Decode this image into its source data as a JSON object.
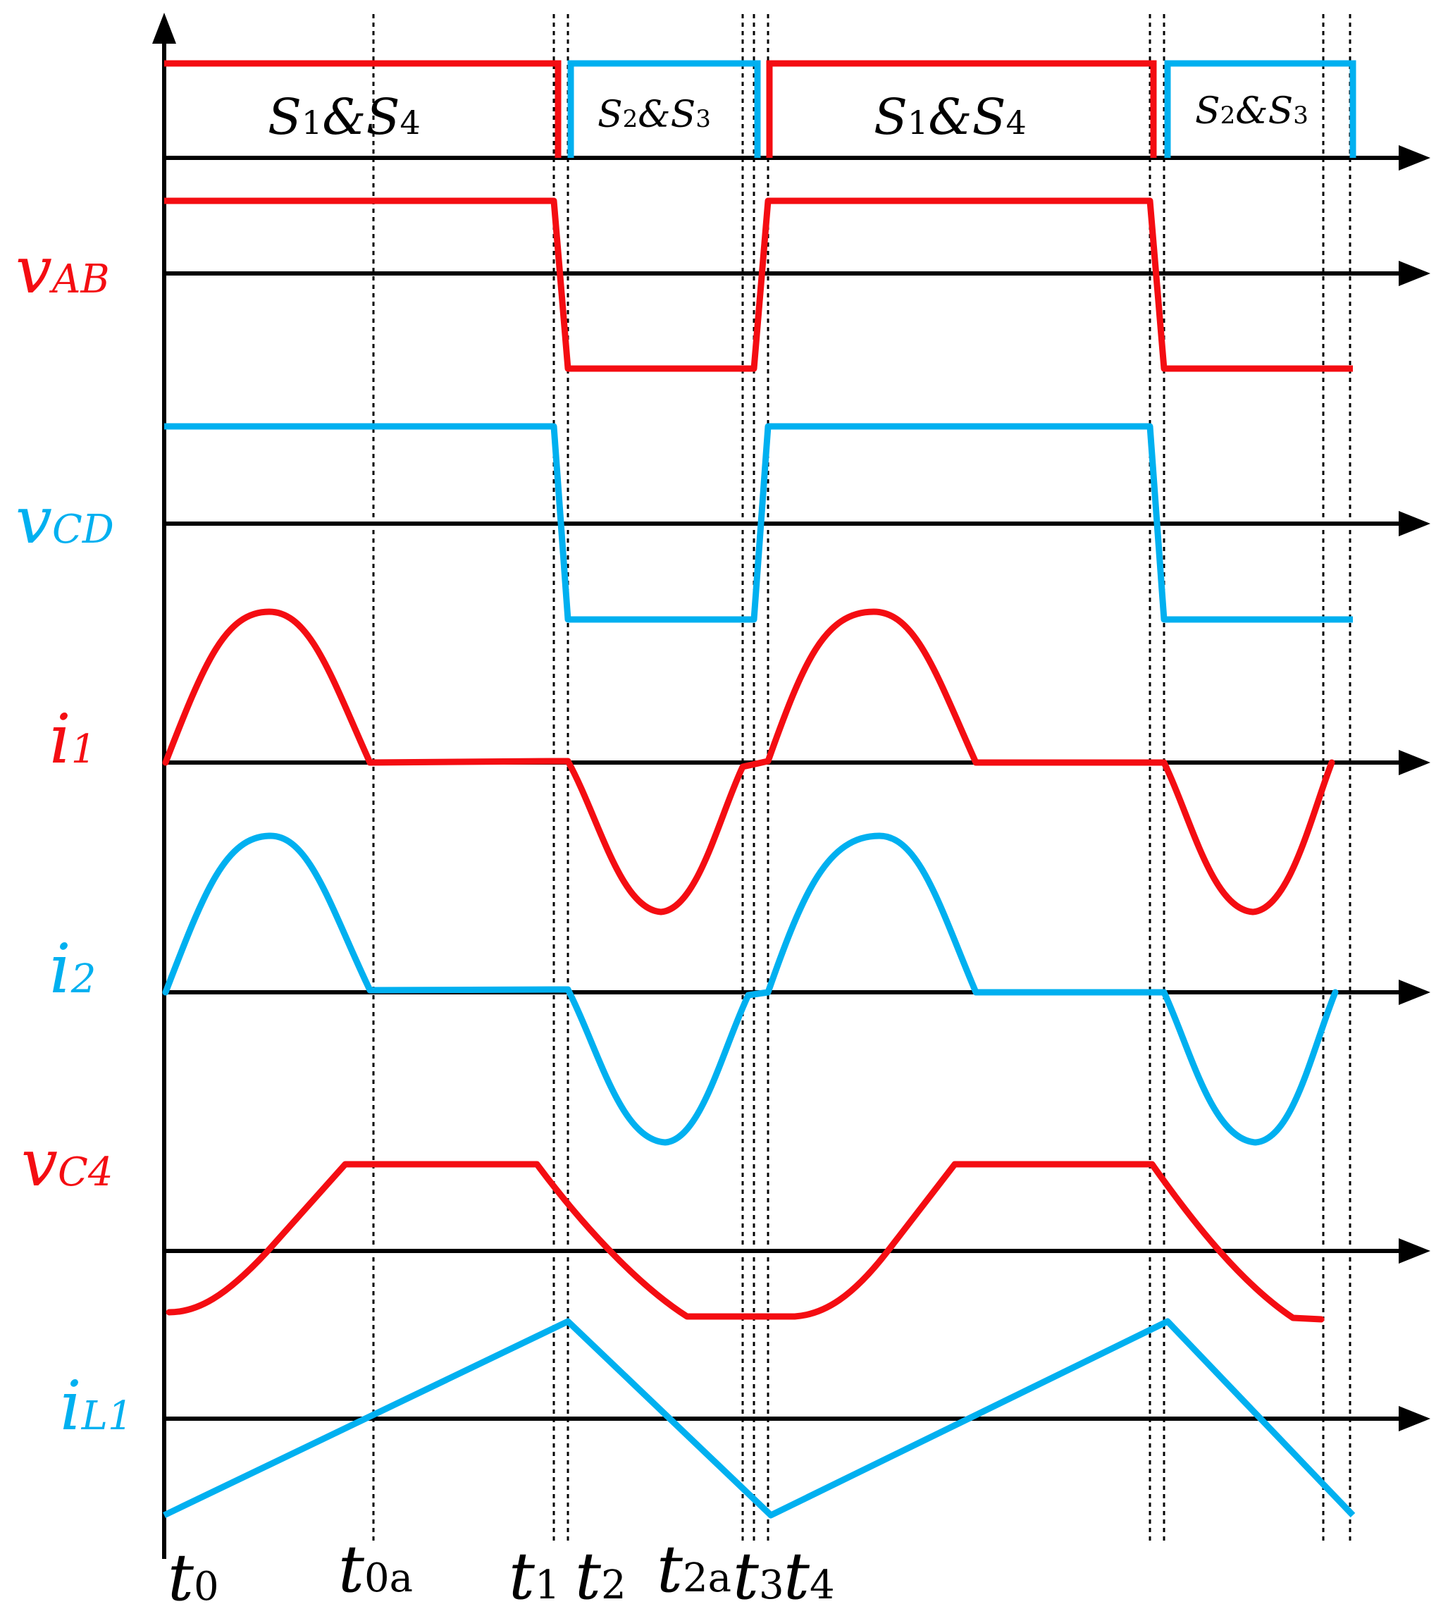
{
  "colors": {
    "red": "#f40d12",
    "blue": "#00b0f0",
    "axis": "#000000"
  },
  "gate_labels": {
    "s14_a": {
      "main": "S",
      "sub1": "1",
      "amp": "&",
      "main2": "S",
      "sub2": "4"
    },
    "s23_a": {
      "main": "S",
      "sub1": "2",
      "amp": "&",
      "main2": "S",
      "sub2": "3"
    },
    "s14_b": {
      "main": "S",
      "sub1": "1",
      "amp": "&",
      "main2": "S",
      "sub2": "4"
    },
    "s23_b": {
      "main": "S",
      "sub1": "2",
      "amp": "&",
      "main2": "S",
      "sub2": "3"
    }
  },
  "signals": {
    "vab": {
      "main": "v",
      "sub": "AB"
    },
    "vcd": {
      "main": "v",
      "sub": "CD"
    },
    "i1": {
      "main": "i",
      "sub": "1"
    },
    "i2": {
      "main": "i",
      "sub": "2"
    },
    "vc4": {
      "main": "v",
      "sub": "C4"
    },
    "il1": {
      "main": "i",
      "sub": "L1"
    }
  },
  "time_marks": {
    "t0": {
      "main": "t",
      "sub": "0"
    },
    "t0a": {
      "main": "t",
      "sub": "0a"
    },
    "t1": {
      "main": "t",
      "sub": "1"
    },
    "t2": {
      "main": "t",
      "sub": "2"
    },
    "t2a": {
      "main": "t",
      "sub": "2a"
    },
    "t3": {
      "main": "t",
      "sub": "3"
    },
    "t4": {
      "main": "t",
      "sub": "4"
    }
  }
}
